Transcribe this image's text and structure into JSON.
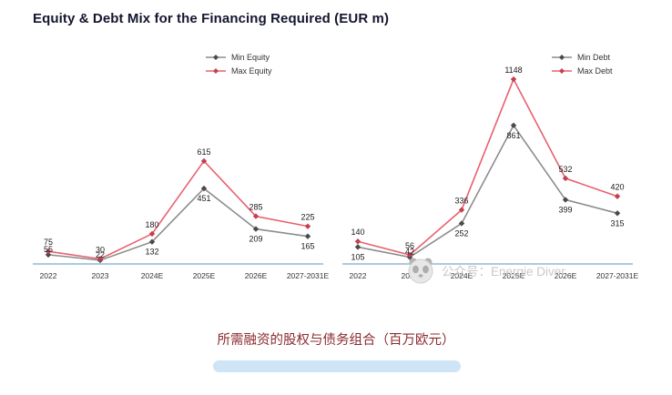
{
  "page": {
    "title": "Equity & Debt Mix for the Financing Required (EUR m)",
    "caption": "所需融资的股权与债务组合（百万欧元）",
    "watermark": "公众号：Energie Diver"
  },
  "colors": {
    "title": "#15152f",
    "caption": "#8a2a2e",
    "axis": "#a9cbe2",
    "min_line": "#8c8c8c",
    "min_marker": "#4a4a4a",
    "max_line": "#e8606f",
    "max_marker": "#c2404f",
    "label": "#1a1a1a",
    "watermark": "#c9c9c9",
    "pill": "#cfe4f4"
  },
  "chart_data": [
    {
      "type": "line",
      "name": "equity",
      "categories": [
        "2022",
        "2023",
        "2024E",
        "2025E",
        "2026E",
        "2027-2031E"
      ],
      "series": [
        {
          "name": "Min Equity",
          "role": "min",
          "values": [
            55,
            22,
            132,
            451,
            209,
            165
          ]
        },
        {
          "name": "Max Equity",
          "role": "max",
          "values": [
            75,
            30,
            180,
            615,
            285,
            225
          ]
        }
      ],
      "ylim": [
        0,
        680
      ],
      "grid": false,
      "legend_position": "top-right"
    },
    {
      "type": "line",
      "name": "debt",
      "categories": [
        "2022",
        "2023",
        "2024E",
        "2025E",
        "2026E",
        "2027-2031E"
      ],
      "series": [
        {
          "name": "Min Debt",
          "role": "min",
          "values": [
            105,
            42,
            252,
            861,
            399,
            315
          ]
        },
        {
          "name": "Max Debt",
          "role": "max",
          "values": [
            140,
            56,
            336,
            1148,
            532,
            420
          ]
        }
      ],
      "ylim": [
        0,
        1250
      ],
      "grid": false,
      "legend_position": "top-right"
    }
  ]
}
